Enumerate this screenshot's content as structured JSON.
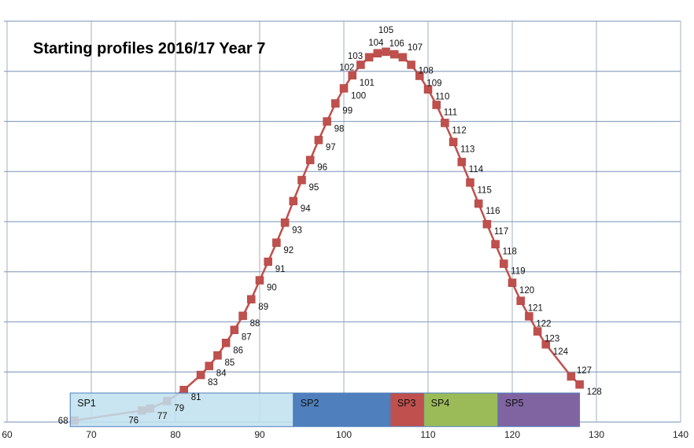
{
  "chart_data": {
    "type": "line",
    "title": "Starting profiles 2016/17  Year 7",
    "xlabel": "",
    "ylabel": "",
    "xlim": [
      60,
      140
    ],
    "xticks": [
      60,
      70,
      80,
      90,
      100,
      110,
      120,
      130,
      140
    ],
    "ylim": [
      0,
      8
    ],
    "y_tick_labels_shown": false,
    "grid": true,
    "legend": "none",
    "series_color": "#C0504D",
    "marker": "square",
    "points": [
      {
        "x": 68,
        "y": 0.03,
        "label": "68"
      },
      {
        "x": 76,
        "y": 0.23,
        "label": "76"
      },
      {
        "x": 77,
        "y": 0.27,
        "label": "77"
      },
      {
        "x": 79,
        "y": 0.42,
        "label": "79"
      },
      {
        "x": 81,
        "y": 0.64,
        "label": "81"
      },
      {
        "x": 83,
        "y": 0.94,
        "label": "83"
      },
      {
        "x": 84,
        "y": 1.12,
        "label": "84"
      },
      {
        "x": 85,
        "y": 1.33,
        "label": "85"
      },
      {
        "x": 86,
        "y": 1.58,
        "label": "86"
      },
      {
        "x": 87,
        "y": 1.84,
        "label": "87"
      },
      {
        "x": 88,
        "y": 2.12,
        "label": "88"
      },
      {
        "x": 89,
        "y": 2.45,
        "label": "89"
      },
      {
        "x": 90,
        "y": 2.83,
        "label": "90"
      },
      {
        "x": 91,
        "y": 3.2,
        "label": "91"
      },
      {
        "x": 92,
        "y": 3.58,
        "label": "92"
      },
      {
        "x": 93,
        "y": 3.98,
        "label": "93"
      },
      {
        "x": 94,
        "y": 4.41,
        "label": "94"
      },
      {
        "x": 95,
        "y": 4.83,
        "label": "95"
      },
      {
        "x": 96,
        "y": 5.23,
        "label": "96"
      },
      {
        "x": 97,
        "y": 5.63,
        "label": "97"
      },
      {
        "x": 98,
        "y": 6.0,
        "label": "98"
      },
      {
        "x": 99,
        "y": 6.36,
        "label": "99"
      },
      {
        "x": 100,
        "y": 6.66,
        "label": "100"
      },
      {
        "x": 101,
        "y": 6.92,
        "label": "101"
      },
      {
        "x": 102,
        "y": 7.13,
        "label": "102"
      },
      {
        "x": 103,
        "y": 7.28,
        "label": "103"
      },
      {
        "x": 104,
        "y": 7.36,
        "label": "104"
      },
      {
        "x": 105,
        "y": 7.39,
        "label": "105"
      },
      {
        "x": 106,
        "y": 7.34,
        "label": "106"
      },
      {
        "x": 107,
        "y": 7.28,
        "label": "107"
      },
      {
        "x": 108,
        "y": 7.13,
        "label": "108"
      },
      {
        "x": 109,
        "y": 6.91,
        "label": "109"
      },
      {
        "x": 110,
        "y": 6.64,
        "label": "110"
      },
      {
        "x": 111,
        "y": 6.33,
        "label": "111"
      },
      {
        "x": 112,
        "y": 5.97,
        "label": "112"
      },
      {
        "x": 113,
        "y": 5.59,
        "label": "113"
      },
      {
        "x": 114,
        "y": 5.19,
        "label": "114"
      },
      {
        "x": 115,
        "y": 4.78,
        "label": "115"
      },
      {
        "x": 116,
        "y": 4.36,
        "label": "116"
      },
      {
        "x": 117,
        "y": 3.95,
        "label": "117"
      },
      {
        "x": 118,
        "y": 3.55,
        "label": "118"
      },
      {
        "x": 119,
        "y": 3.16,
        "label": "119"
      },
      {
        "x": 120,
        "y": 2.78,
        "label": "120"
      },
      {
        "x": 121,
        "y": 2.42,
        "label": "121"
      },
      {
        "x": 122,
        "y": 2.11,
        "label": "122"
      },
      {
        "x": 123,
        "y": 1.81,
        "label": "123"
      },
      {
        "x": 124,
        "y": 1.55,
        "label": "124"
      },
      {
        "x": 127,
        "y": 0.91,
        "label": "127"
      },
      {
        "x": 128,
        "y": 0.75,
        "label": "128"
      }
    ],
    "bands": [
      {
        "label": "SP1",
        "x0": 67.5,
        "x1": 94,
        "color": "#BFE0EE",
        "opacity": 0.85
      },
      {
        "label": "SP2",
        "x0": 94,
        "x1": 105.5,
        "color": "#4F7FBD",
        "opacity": 1
      },
      {
        "label": "SP3",
        "x0": 105.5,
        "x1": 109.5,
        "color": "#C0504D",
        "opacity": 1
      },
      {
        "label": "SP4",
        "x0": 109.5,
        "x1": 118.3,
        "color": "#9BBB59",
        "opacity": 1
      },
      {
        "label": "SP5",
        "x0": 118.3,
        "x1": 128,
        "color": "#8064A2",
        "opacity": 1
      }
    ],
    "band_y_range": [
      -0.09,
      0.58
    ]
  }
}
